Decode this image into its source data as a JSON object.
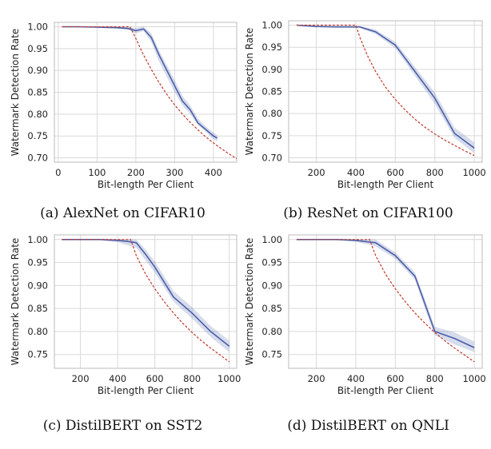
{
  "chart_data": [
    {
      "type": "line",
      "caption": "(a) AlexNet on CIFAR10",
      "xlabel": "Bit-length Per Client",
      "ylabel": "Watermark Detection Rate",
      "xlim": [
        -10,
        460
      ],
      "ylim": [
        0.69,
        1.01
      ],
      "xticks": [
        0,
        100,
        200,
        300,
        400
      ],
      "yticks": [
        0.7,
        0.75,
        0.8,
        0.85,
        0.9,
        0.95,
        1.0
      ],
      "grid": true,
      "series": [
        {
          "style": "solid-band",
          "color": "#4a5fa8",
          "x": [
            10,
            50,
            100,
            150,
            180,
            200,
            220,
            240,
            260,
            280,
            300,
            320,
            340,
            360,
            380,
            400,
            410
          ],
          "y": [
            1.0,
            1.0,
            0.999,
            0.998,
            0.996,
            0.991,
            0.995,
            0.975,
            0.935,
            0.9,
            0.865,
            0.83,
            0.81,
            0.78,
            0.765,
            0.75,
            0.745
          ],
          "lower": [
            1.0,
            0.999,
            0.998,
            0.996,
            0.993,
            0.985,
            0.99,
            0.965,
            0.92,
            0.885,
            0.85,
            0.82,
            0.8,
            0.775,
            0.76,
            0.742,
            0.738
          ],
          "upper": [
            1.0,
            1.0,
            1.0,
            0.999,
            0.999,
            0.997,
            1.0,
            0.985,
            0.945,
            0.912,
            0.878,
            0.842,
            0.82,
            0.79,
            0.772,
            0.758,
            0.752
          ]
        },
        {
          "style": "dashed",
          "color": "#c0392b",
          "x": [
            10,
            185,
            200,
            220,
            240,
            260,
            280,
            300,
            320,
            340,
            360,
            380,
            400,
            420,
            440,
            460
          ],
          "y": [
            1.0,
            1.0,
            0.973,
            0.935,
            0.902,
            0.872,
            0.845,
            0.821,
            0.8,
            0.781,
            0.764,
            0.748,
            0.734,
            0.721,
            0.709,
            0.698
          ]
        }
      ]
    },
    {
      "type": "line",
      "caption": "(b) ResNet on CIFAR100",
      "xlabel": "Bit-length Per Client",
      "ylabel": "Watermark Detection Rate",
      "xlim": [
        60,
        1040
      ],
      "ylim": [
        0.69,
        1.01
      ],
      "xticks": [
        200,
        400,
        600,
        800,
        1000
      ],
      "yticks": [
        0.7,
        0.75,
        0.8,
        0.85,
        0.9,
        0.95,
        1.0
      ],
      "grid": true,
      "series": [
        {
          "style": "solid-band",
          "color": "#4a5fa8",
          "x": [
            100,
            200,
            300,
            400,
            420,
            500,
            600,
            700,
            800,
            900,
            1000
          ],
          "y": [
            1.0,
            0.997,
            0.996,
            0.996,
            0.996,
            0.985,
            0.955,
            0.895,
            0.835,
            0.755,
            0.722
          ],
          "lower": [
            1.0,
            0.996,
            0.995,
            0.994,
            0.994,
            0.98,
            0.948,
            0.885,
            0.822,
            0.745,
            0.71
          ],
          "upper": [
            1.0,
            0.998,
            0.998,
            0.998,
            0.998,
            0.99,
            0.962,
            0.905,
            0.848,
            0.768,
            0.735
          ]
        },
        {
          "style": "dashed",
          "color": "#c0392b",
          "x": [
            100,
            400,
            420,
            460,
            500,
            550,
            600,
            650,
            700,
            750,
            800,
            850,
            900,
            950,
            1000
          ],
          "y": [
            1.0,
            1.0,
            0.973,
            0.93,
            0.895,
            0.86,
            0.832,
            0.808,
            0.787,
            0.769,
            0.754,
            0.74,
            0.728,
            0.716,
            0.705
          ]
        }
      ]
    },
    {
      "type": "line",
      "caption": "(c) DistilBERT on SST2",
      "xlabel": "Bit-length Per Client",
      "ylabel": "Watermark Detection Rate",
      "xlim": [
        60,
        1040
      ],
      "ylim": [
        0.72,
        1.01
      ],
      "xticks": [
        200,
        400,
        600,
        800,
        1000
      ],
      "yticks": [
        0.75,
        0.8,
        0.85,
        0.9,
        0.95,
        1.0
      ],
      "grid": true,
      "series": [
        {
          "style": "solid-band",
          "color": "#4a5fa8",
          "x": [
            100,
            200,
            300,
            400,
            450,
            500,
            550,
            600,
            700,
            800,
            900,
            1000
          ],
          "y": [
            1.0,
            1.0,
            1.0,
            0.998,
            0.996,
            0.993,
            0.968,
            0.94,
            0.875,
            0.84,
            0.8,
            0.768
          ],
          "lower": [
            1.0,
            1.0,
            0.999,
            0.994,
            0.988,
            0.982,
            0.955,
            0.928,
            0.865,
            0.828,
            0.788,
            0.755
          ],
          "upper": [
            1.0,
            1.0,
            1.0,
            1.0,
            1.0,
            1.0,
            0.978,
            0.952,
            0.888,
            0.853,
            0.812,
            0.78
          ]
        },
        {
          "style": "dashed",
          "color": "#c0392b",
          "x": [
            100,
            470,
            500,
            550,
            600,
            650,
            700,
            750,
            800,
            850,
            900,
            950,
            1000
          ],
          "y": [
            1.0,
            1.0,
            0.965,
            0.925,
            0.893,
            0.865,
            0.84,
            0.818,
            0.798,
            0.78,
            0.764,
            0.749,
            0.734
          ]
        }
      ]
    },
    {
      "type": "line",
      "caption": "(d) DistilBERT on QNLI",
      "xlabel": "Bit-length Per Client",
      "ylabel": "Watermark Detection Rate",
      "xlim": [
        60,
        1040
      ],
      "ylim": [
        0.72,
        1.01
      ],
      "xticks": [
        200,
        400,
        600,
        800,
        1000
      ],
      "yticks": [
        0.75,
        0.8,
        0.85,
        0.9,
        0.95,
        1.0
      ],
      "grid": true,
      "series": [
        {
          "style": "solid-band",
          "color": "#4a5fa8",
          "x": [
            100,
            200,
            300,
            400,
            500,
            600,
            700,
            750,
            800,
            900,
            1000
          ],
          "y": [
            1.0,
            1.0,
            1.0,
            0.998,
            0.993,
            0.965,
            0.92,
            0.86,
            0.8,
            0.785,
            0.765
          ],
          "lower": [
            1.0,
            1.0,
            0.999,
            0.995,
            0.985,
            0.958,
            0.912,
            0.85,
            0.792,
            0.772,
            0.755
          ],
          "upper": [
            1.0,
            1.0,
            1.0,
            1.0,
            1.0,
            0.972,
            0.928,
            0.87,
            0.81,
            0.798,
            0.778
          ]
        },
        {
          "style": "dashed",
          "color": "#c0392b",
          "x": [
            100,
            470,
            500,
            550,
            600,
            650,
            700,
            750,
            800,
            850,
            900,
            950,
            1000
          ],
          "y": [
            1.0,
            1.0,
            0.965,
            0.925,
            0.893,
            0.865,
            0.84,
            0.818,
            0.798,
            0.78,
            0.764,
            0.749,
            0.734
          ]
        }
      ]
    }
  ]
}
